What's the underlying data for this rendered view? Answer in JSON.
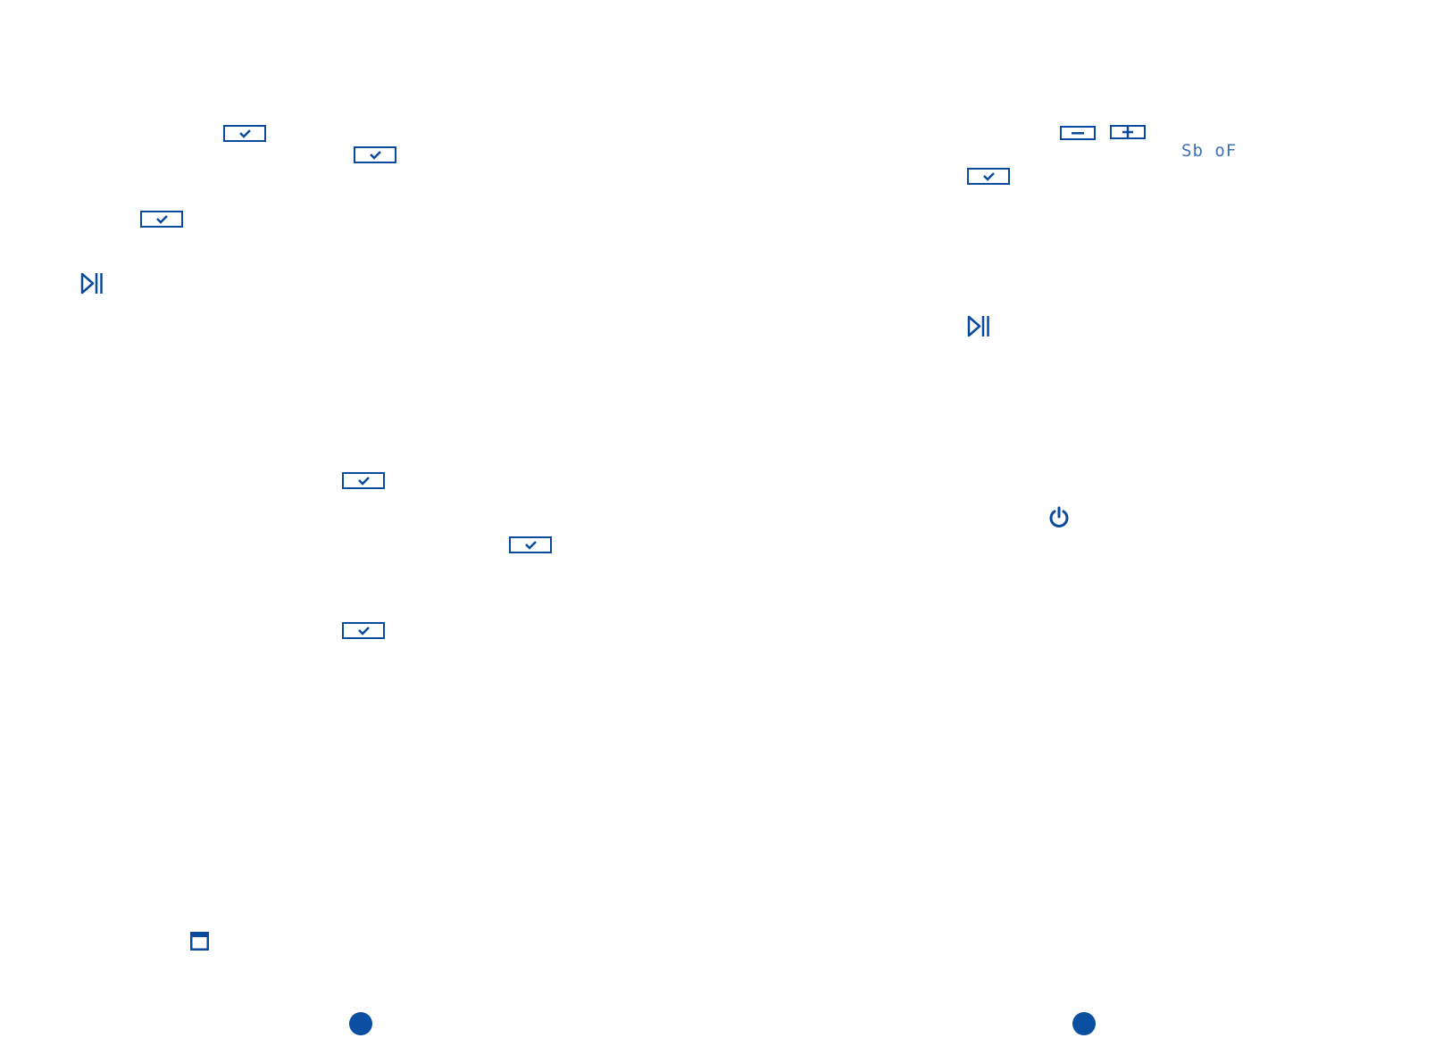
{
  "accent_color": "#0a4a9c",
  "left_page": {
    "ok_buttons": [
      "ok-check-icon",
      "ok-check-icon",
      "ok-check-icon",
      "ok-check-icon",
      "ok-check-icon",
      "ok-check-icon"
    ],
    "icons": [
      "play-pause-icon",
      "window-icon"
    ]
  },
  "right_page": {
    "minus_button": "minus-icon",
    "plus_button": "plus-icon",
    "display_text": "Sb oF",
    "icons": [
      "ok-check-icon",
      "play-pause-icon",
      "power-icon"
    ]
  },
  "page_marker_color": "#0a4fa0"
}
